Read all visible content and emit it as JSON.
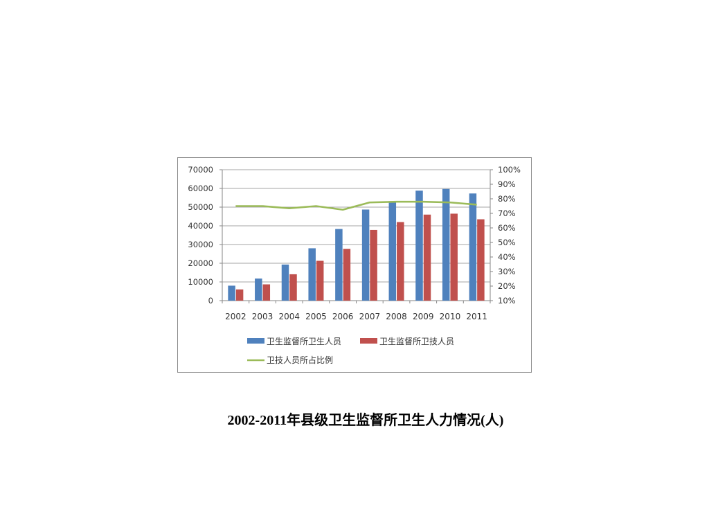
{
  "colors": {
    "series1": "#4f81bd",
    "series2": "#c0504d",
    "line": "#9bbb59",
    "axis": "#868686",
    "text": "#333333"
  },
  "caption": {
    "years": "2002-2011",
    "text": "年县级卫生监督所卫生人力情况(人)"
  },
  "chart_data": {
    "type": "bar",
    "categories": [
      "2002",
      "2003",
      "2004",
      "2005",
      "2006",
      "2007",
      "2008",
      "2009",
      "2010",
      "2011"
    ],
    "series": [
      {
        "name": "卫生监督所卫生人员",
        "type": "bar",
        "axis": "left",
        "values": [
          8000,
          11800,
          19300,
          28000,
          38300,
          48700,
          53200,
          58800,
          59700,
          57300
        ]
      },
      {
        "name": "卫生监督所卫技人员",
        "type": "bar",
        "axis": "left",
        "values": [
          6000,
          8700,
          14100,
          21300,
          27700,
          37800,
          42000,
          46000,
          46500,
          43500
        ]
      },
      {
        "name": "卫技人员所占比例",
        "type": "line",
        "axis": "right",
        "values": [
          75,
          75,
          73.5,
          75,
          72.5,
          77.5,
          78,
          78,
          77.5,
          76
        ]
      }
    ],
    "y_left": {
      "ticks": [
        "0",
        "10000",
        "20000",
        "30000",
        "40000",
        "50000",
        "60000",
        "70000"
      ],
      "range": [
        0,
        70000
      ]
    },
    "y_right": {
      "ticks": [
        "10%",
        "20%",
        "30%",
        "40%",
        "50%",
        "60%",
        "70%",
        "80%",
        "90%",
        "100%"
      ],
      "range": [
        10,
        100
      ]
    },
    "grid": true,
    "legend": "bottom"
  }
}
